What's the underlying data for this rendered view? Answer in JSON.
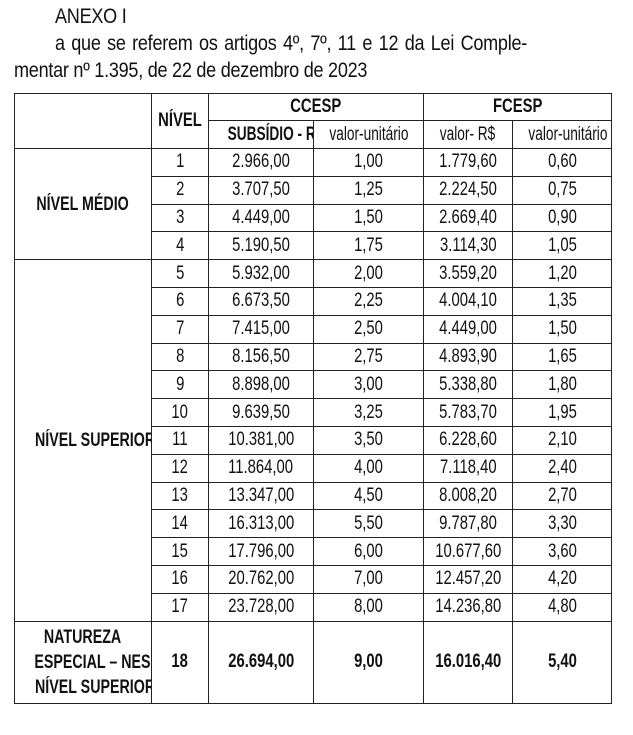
{
  "heading": {
    "title": "ANEXO I",
    "line2": "a que se referem os artigos 4º, 7º, 11 e 12 da Lei Comple-",
    "line3": "mentar nº 1.395, de 22 de dezembro de 2023"
  },
  "table": {
    "header": {
      "nivel": "NÍVEL",
      "ccesp": "CCESP",
      "fcesp": "FCESP",
      "ccesp_subsidio": "SUBSÍDIO - R$",
      "ccesp_unit": "valor-unitário",
      "fcesp_valor": "valor- R$",
      "fcesp_unit": "valor-unitário"
    },
    "groups": [
      {
        "label": [
          "NÍVEL MÉDIO"
        ],
        "rows": [
          [
            "1",
            "2.966,00",
            "1,00",
            "1.779,60",
            "0,60"
          ],
          [
            "2",
            "3.707,50",
            "1,25",
            "2.224,50",
            "0,75"
          ],
          [
            "3",
            "4.449,00",
            "1,50",
            "2.669,40",
            "0,90"
          ],
          [
            "4",
            "5.190,50",
            "1,75",
            "3.114,30",
            "1,05"
          ]
        ]
      },
      {
        "label": [
          "NÍVEL SUPERIOR"
        ],
        "rows": [
          [
            "5",
            "5.932,00",
            "2,00",
            "3.559,20",
            "1,20"
          ],
          [
            "6",
            "6.673,50",
            "2,25",
            "4.004,10",
            "1,35"
          ],
          [
            "7",
            "7.415,00",
            "2,50",
            "4.449,00",
            "1,50"
          ],
          [
            "8",
            "8.156,50",
            "2,75",
            "4.893,90",
            "1,65"
          ],
          [
            "9",
            "8.898,00",
            "3,00",
            "5.338,80",
            "1,80"
          ],
          [
            "10",
            "9.639,50",
            "3,25",
            "5.783,70",
            "1,95"
          ],
          [
            "11",
            "10.381,00",
            "3,50",
            "6.228,60",
            "2,10"
          ],
          [
            "12",
            "11.864,00",
            "4,00",
            "7.118,40",
            "2,40"
          ],
          [
            "13",
            "13.347,00",
            "4,50",
            "8.008,20",
            "2,70"
          ],
          [
            "14",
            "16.313,00",
            "5,50",
            "9.787,80",
            "3,30"
          ],
          [
            "15",
            "17.796,00",
            "6,00",
            "10.677,60",
            "3,60"
          ],
          [
            "16",
            "20.762,00",
            "7,00",
            "12.457,20",
            "4,20"
          ],
          [
            "17",
            "23.728,00",
            "8,00",
            "14.236,80",
            "4,80"
          ]
        ]
      },
      {
        "label": [
          "NATUREZA",
          "ESPECIAL – NES",
          "NÍVEL SUPERIOR"
        ],
        "rows": [
          [
            "18",
            "26.694,00",
            "9,00",
            "16.016,40",
            "5,40"
          ]
        ]
      }
    ]
  }
}
